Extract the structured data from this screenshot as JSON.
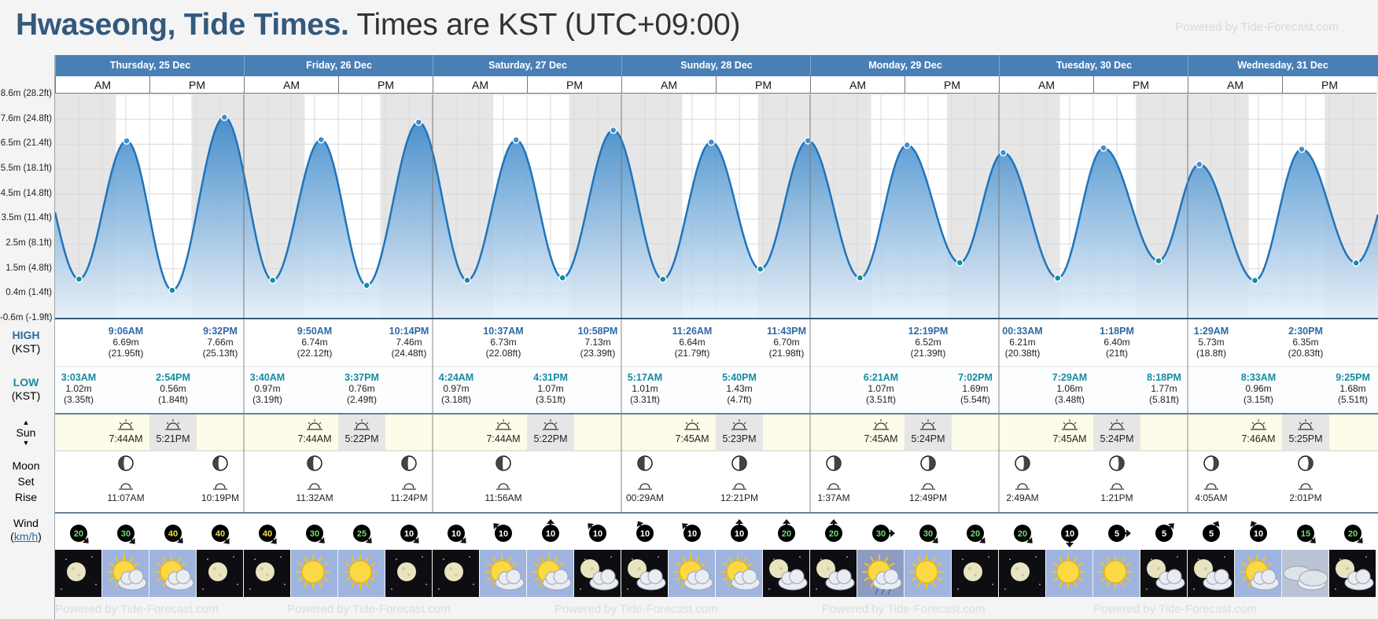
{
  "title": {
    "city": "Hwaseong, Tide Times.",
    "tz": "Times are KST (UTC+09:00)"
  },
  "powered_by": "Powered by Tide-Forecast.com",
  "watermark": "Powered by Tide-Forecast.com",
  "colors": {
    "header": "#4a7fb5",
    "tide_top": "#2d80c6",
    "tide_bottom": "#e8f1fa",
    "night": "#e6e6e6",
    "high_text": "#2d6aa3",
    "low_text": "#168ba0",
    "sun_row": "#fdfcea"
  },
  "days": [
    {
      "label": "Thursday, 25 Dec",
      "am": "AM",
      "pm": "PM"
    },
    {
      "label": "Friday, 26 Dec",
      "am": "AM",
      "pm": "PM"
    },
    {
      "label": "Saturday, 27 Dec",
      "am": "AM",
      "pm": "PM"
    },
    {
      "label": "Sunday, 28 Dec",
      "am": "AM",
      "pm": "PM"
    },
    {
      "label": "Monday, 29 Dec",
      "am": "AM",
      "pm": "PM"
    },
    {
      "label": "Tuesday, 30 Dec",
      "am": "AM",
      "pm": "PM"
    },
    {
      "label": "Wednesday, 31 Dec",
      "am": "AM",
      "pm": "PM"
    }
  ],
  "row_labels": {
    "high": "HIGH",
    "high_sub": "(KST)",
    "low": "LOW",
    "low_sub": "(KST)",
    "sun": "Sun",
    "moon": "Moon",
    "set": "Set",
    "rise": "Rise",
    "wind": "Wind",
    "wind_unit": "km/h"
  },
  "chart_data": {
    "type": "area",
    "title": "",
    "xlabel": "",
    "ylabel": "",
    "y_ticks": [
      "8.6m (28.2ft)",
      "7.6m (24.8ft)",
      "6.5m (21.4ft)",
      "5.5m (18.1ft)",
      "4.5m (14.8ft)",
      "3.5m (11.4ft)",
      "2.5m (8.1ft)",
      "1.5m (4.8ft)",
      "0.4m (1.4ft)",
      "-0.6m (-1.9ft)"
    ],
    "ylim": [
      -0.6,
      8.6
    ],
    "x_unit": "hours since Thu 25 Dec 00:00 KST",
    "xlim": [
      0,
      168
    ],
    "grid": true,
    "series": [
      {
        "values": [
          {
            "x": 3.05,
            "y": 1.02
          },
          {
            "x": 9.1,
            "y": 6.69
          },
          {
            "x": 14.9,
            "y": 0.56
          },
          {
            "x": 21.53,
            "y": 7.66
          },
          {
            "x": 27.67,
            "y": 0.97
          },
          {
            "x": 33.83,
            "y": 6.74
          },
          {
            "x": 39.62,
            "y": 0.76
          },
          {
            "x": 46.23,
            "y": 7.46
          },
          {
            "x": 52.4,
            "y": 0.97
          },
          {
            "x": 58.62,
            "y": 6.73
          },
          {
            "x": 64.52,
            "y": 1.07
          },
          {
            "x": 70.97,
            "y": 7.13
          },
          {
            "x": 77.28,
            "y": 1.01
          },
          {
            "x": 83.43,
            "y": 6.64
          },
          {
            "x": 89.67,
            "y": 1.43
          },
          {
            "x": 95.72,
            "y": 6.7
          },
          {
            "x": 102.35,
            "y": 1.07
          },
          {
            "x": 108.32,
            "y": 6.52
          },
          {
            "x": 115.03,
            "y": 1.69
          },
          {
            "x": 120.55,
            "y": 6.21
          },
          {
            "x": 127.48,
            "y": 1.06
          },
          {
            "x": 133.3,
            "y": 6.4
          },
          {
            "x": 140.3,
            "y": 1.77
          },
          {
            "x": 145.48,
            "y": 5.73
          },
          {
            "x": 152.55,
            "y": 0.96
          },
          {
            "x": 158.5,
            "y": 6.35
          },
          {
            "x": 165.42,
            "y": 1.68
          }
        ]
      }
    ]
  },
  "highs": [
    {
      "time": "9:06AM",
      "m": "6.69m",
      "ft": "(21.95ft)"
    },
    {
      "time": "9:32PM",
      "m": "7.66m",
      "ft": "(25.13ft)"
    },
    {
      "time": "9:50AM",
      "m": "6.74m",
      "ft": "(22.12ft)"
    },
    {
      "time": "10:14PM",
      "m": "7.46m",
      "ft": "(24.48ft)"
    },
    {
      "time": "10:37AM",
      "m": "6.73m",
      "ft": "(22.08ft)"
    },
    {
      "time": "10:58PM",
      "m": "7.13m",
      "ft": "(23.39ft)"
    },
    {
      "time": "11:26AM",
      "m": "6.64m",
      "ft": "(21.79ft)"
    },
    {
      "time": "11:43PM",
      "m": "6.70m",
      "ft": "(21.98ft)"
    },
    {
      "time": "12:19PM",
      "m": "6.52m",
      "ft": "(21.39ft)"
    },
    {
      "time": "00:33AM",
      "m": "6.21m",
      "ft": "(20.38ft)"
    },
    {
      "time": "1:18PM",
      "m": "6.40m",
      "ft": "(21ft)"
    },
    {
      "time": "1:29AM",
      "m": "5.73m",
      "ft": "(18.8ft)"
    },
    {
      "time": "2:30PM",
      "m": "6.35m",
      "ft": "(20.83ft)"
    }
  ],
  "lows": [
    {
      "time": "3:03AM",
      "m": "1.02m",
      "ft": "(3.35ft)"
    },
    {
      "time": "2:54PM",
      "m": "0.56m",
      "ft": "(1.84ft)"
    },
    {
      "time": "3:40AM",
      "m": "0.97m",
      "ft": "(3.19ft)"
    },
    {
      "time": "3:37PM",
      "m": "0.76m",
      "ft": "(2.49ft)"
    },
    {
      "time": "4:24AM",
      "m": "0.97m",
      "ft": "(3.18ft)"
    },
    {
      "time": "4:31PM",
      "m": "1.07m",
      "ft": "(3.51ft)"
    },
    {
      "time": "5:17AM",
      "m": "1.01m",
      "ft": "(3.31ft)"
    },
    {
      "time": "5:40PM",
      "m": "1.43m",
      "ft": "(4.7ft)"
    },
    {
      "time": "6:21AM",
      "m": "1.07m",
      "ft": "(3.51ft)"
    },
    {
      "time": "7:02PM",
      "m": "1.69m",
      "ft": "(5.54ft)"
    },
    {
      "time": "7:29AM",
      "m": "1.06m",
      "ft": "(3.48ft)"
    },
    {
      "time": "8:18PM",
      "m": "1.77m",
      "ft": "(5.81ft)"
    },
    {
      "time": "8:33AM",
      "m": "0.96m",
      "ft": "(3.15ft)"
    },
    {
      "time": "9:25PM",
      "m": "1.68m",
      "ft": "(5.51ft)"
    }
  ],
  "sun": [
    {
      "rise": "7:44AM",
      "set": "5:21PM"
    },
    {
      "rise": "7:44AM",
      "set": "5:22PM"
    },
    {
      "rise": "7:44AM",
      "set": "5:22PM"
    },
    {
      "rise": "7:45AM",
      "set": "5:23PM"
    },
    {
      "rise": "7:45AM",
      "set": "5:24PM"
    },
    {
      "rise": "7:45AM",
      "set": "5:24PM"
    },
    {
      "rise": "7:46AM",
      "set": "5:25PM"
    }
  ],
  "moon_events": [
    {
      "time": "11:07AM",
      "phase": 0.35
    },
    {
      "time": "10:19PM",
      "phase": 0.37
    },
    {
      "time": "11:32AM",
      "phase": 0.4
    },
    {
      "time": "11:24PM",
      "phase": 0.42
    },
    {
      "time": "11:56AM",
      "phase": 0.45
    },
    {
      "time": "00:29AM",
      "phase": 0.48
    },
    {
      "time": "12:21PM",
      "phase": 0.5
    },
    {
      "time": "1:37AM",
      "phase": 0.54
    },
    {
      "time": "12:49PM",
      "phase": 0.57
    },
    {
      "time": "2:49AM",
      "phase": 0.6
    },
    {
      "time": "1:21PM",
      "phase": 0.63
    },
    {
      "time": "4:05AM",
      "phase": 0.66
    },
    {
      "time": "2:01PM",
      "phase": 0.7
    }
  ],
  "wind": [
    {
      "speed": "20",
      "dir": 135
    },
    {
      "speed": "30",
      "dir": 140
    },
    {
      "speed": "40",
      "dir": 135
    },
    {
      "speed": "40",
      "dir": 140
    },
    {
      "speed": "40",
      "dir": 140
    },
    {
      "speed": "30",
      "dir": 135
    },
    {
      "speed": "25",
      "dir": 135
    },
    {
      "speed": "10",
      "dir": 135
    },
    {
      "speed": "10",
      "dir": 135
    },
    {
      "speed": "10",
      "dir": 315
    },
    {
      "speed": "10",
      "dir": 0
    },
    {
      "speed": "10",
      "dir": 315
    },
    {
      "speed": "10",
      "dir": 330
    },
    {
      "speed": "10",
      "dir": 315
    },
    {
      "speed": "10",
      "dir": 0
    },
    {
      "speed": "20",
      "dir": 0
    },
    {
      "speed": "20",
      "dir": 0
    },
    {
      "speed": "30",
      "dir": 90
    },
    {
      "speed": "30",
      "dir": 135
    },
    {
      "speed": "20",
      "dir": 135
    },
    {
      "speed": "20",
      "dir": 135
    },
    {
      "speed": "10",
      "dir": 180
    },
    {
      "speed": "5",
      "dir": 90
    },
    {
      "speed": "5",
      "dir": 45
    },
    {
      "speed": "5",
      "dir": 30
    },
    {
      "speed": "10",
      "dir": 330
    },
    {
      "speed": "15",
      "dir": 135
    },
    {
      "speed": "20",
      "dir": 135
    }
  ],
  "weather": [
    "moon-night",
    "partly-cloudy-day",
    "partly-cloudy-day",
    "moon-night",
    "moon-night",
    "sunny",
    "sunny",
    "moon-night",
    "moon-night",
    "partly-cloudy-day",
    "partly-cloudy-day",
    "cloudy-night",
    "cloudy-night",
    "partly-cloudy-day",
    "partly-cloudy-day",
    "cloudy-night",
    "cloudy-night",
    "rain-day",
    "sunny",
    "moon-night",
    "moon-night",
    "sunny",
    "sunny",
    "cloudy-night",
    "cloudy-night",
    "partly-cloudy-day",
    "overcast-day",
    "cloudy-night"
  ]
}
